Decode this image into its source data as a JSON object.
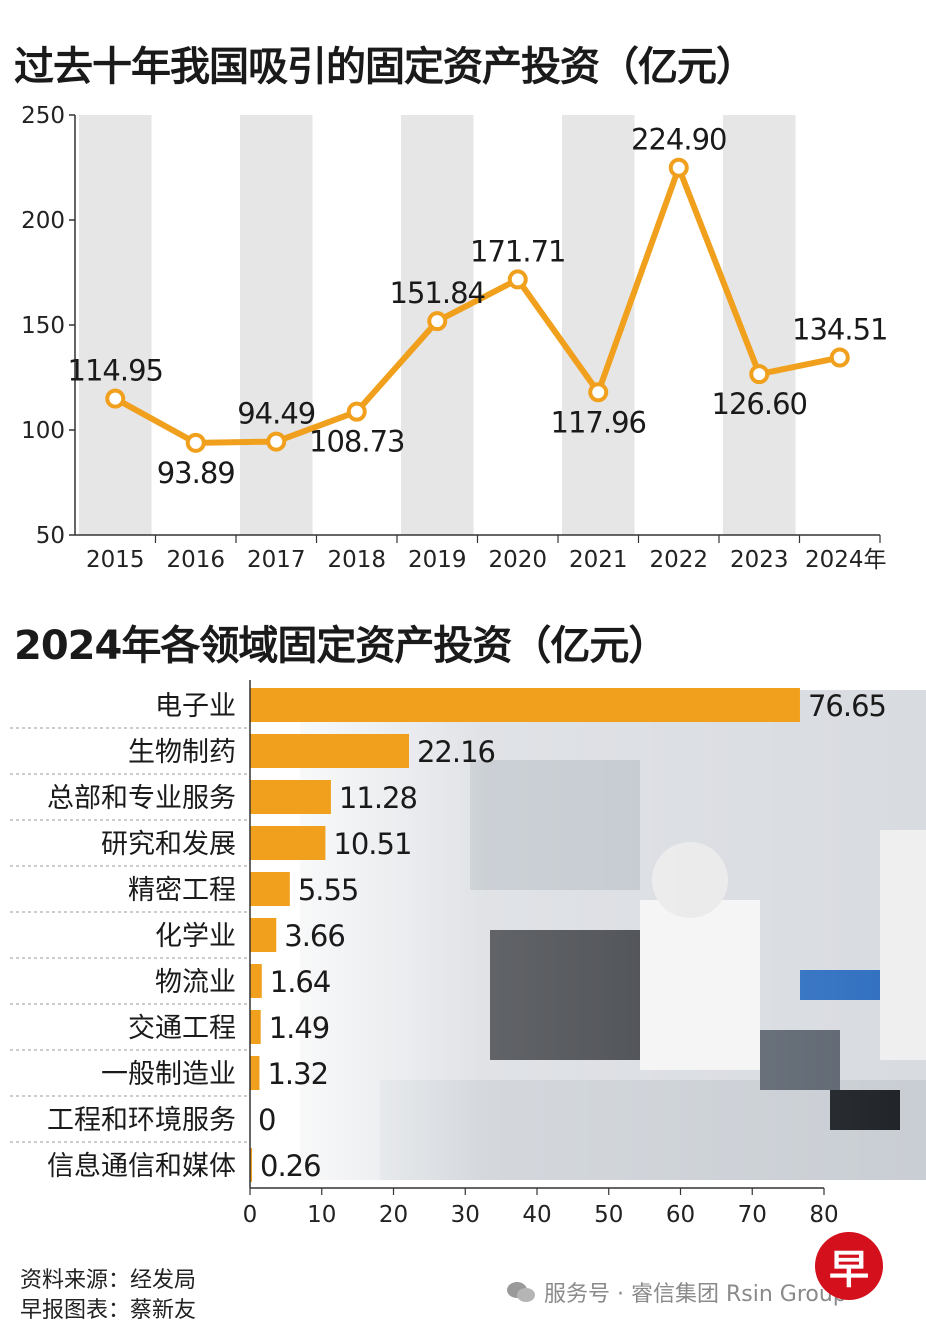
{
  "titles": {
    "main": "过去十年我国吸引的固定资产投资（亿元）",
    "sectors": "2024年各领域固定资产投资（亿元）"
  },
  "footer": {
    "source": "资料来源：经发局",
    "credit": "早报图表：蔡新友",
    "watermark": "服务号 · 睿信集团 Rsin Group",
    "logo": "早"
  },
  "colors": {
    "accent": "#f0a01c",
    "band": "#e6e6e6",
    "axis": "#333333"
  },
  "chart_data": [
    {
      "type": "line",
      "title": "过去十年我国吸引的固定资产投资（亿元）",
      "x": [
        "2015",
        "2016",
        "2017",
        "2018",
        "2019",
        "2020",
        "2021",
        "2022",
        "2023",
        "2024年"
      ],
      "series": [
        {
          "values": [
            114.95,
            93.89,
            94.49,
            108.73,
            151.84,
            171.71,
            117.96,
            224.9,
            126.6,
            134.51
          ]
        }
      ],
      "data_labels": [
        "114.95",
        "93.89",
        "94.49",
        "108.73",
        "151.84",
        "171.71",
        "117.96",
        "224.90",
        "126.60",
        "134.51"
      ],
      "yticks": [
        "250",
        "200",
        "150",
        "100",
        "50"
      ],
      "ylim": [
        50,
        250
      ],
      "alternating_bands": true,
      "legend": "none"
    },
    {
      "type": "bar",
      "orientation": "horizontal",
      "title": "2024年各领域固定资产投资（亿元）",
      "categories": [
        "电子业",
        "生物制药",
        "总部和专业服务",
        "研究和发展",
        "精密工程",
        "化学业",
        "物流业",
        "交通工程",
        "一般制造业",
        "工程和环境服务",
        "信息通信和媒体"
      ],
      "values": [
        76.65,
        22.16,
        11.28,
        10.51,
        5.55,
        3.66,
        1.64,
        1.49,
        1.32,
        0,
        0.26
      ],
      "data_labels": [
        "76.65",
        "22.16",
        "11.28",
        "10.51",
        "5.55",
        "3.66",
        "1.64",
        "1.49",
        "1.32",
        "0",
        "0.26"
      ],
      "xticks": [
        "0",
        "10",
        "20",
        "30",
        "40",
        "50",
        "60",
        "70",
        "80"
      ],
      "xlim": [
        0,
        80
      ],
      "legend": "none"
    }
  ]
}
